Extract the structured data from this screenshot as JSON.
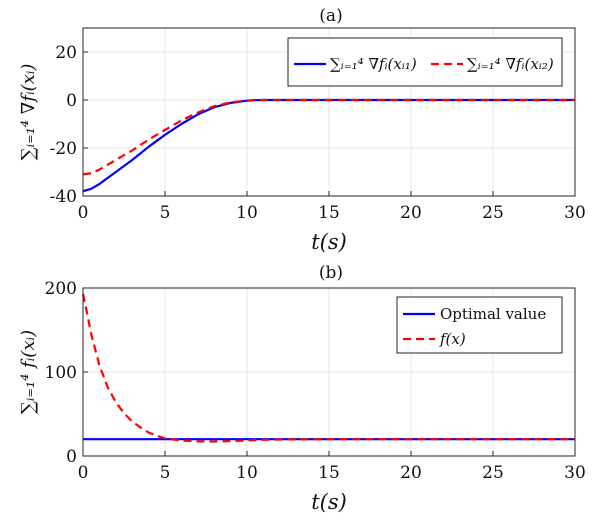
{
  "chart_data": [
    {
      "type": "line",
      "title": "(a)",
      "xlabel": "t(s)",
      "ylabel": "∑ᵢ₌₁⁴ ∇fᵢ(xᵢ)",
      "xlim": [
        0,
        30
      ],
      "ylim": [
        -40,
        30
      ],
      "xticks": [
        "0",
        "5",
        "10",
        "15",
        "20",
        "25",
        "30"
      ],
      "yticks": [
        "-40",
        "-20",
        "0",
        "20"
      ],
      "grid": true,
      "legend_position": "top-right",
      "x": [
        0,
        0.5,
        1,
        1.5,
        2,
        3,
        4,
        5,
        6,
        7,
        8,
        9,
        10,
        10.5,
        11,
        12,
        15,
        20,
        25,
        30
      ],
      "series": [
        {
          "name": "∑ᵢ₌₁⁴ ∇fᵢ(xᵢ₁)",
          "color": "#0000ff",
          "dash": "solid",
          "values": [
            -38,
            -37,
            -35,
            -32.5,
            -30,
            -25,
            -19.5,
            -14.5,
            -10,
            -6,
            -3,
            -1.2,
            -0.3,
            -0.1,
            0,
            0,
            0,
            0,
            0,
            0
          ]
        },
        {
          "name": "∑ᵢ₌₁⁴ ∇fᵢ(xᵢ₂)",
          "color": "#ff0000",
          "dash": "dashed",
          "values": [
            -31,
            -30.5,
            -29,
            -27,
            -25,
            -21,
            -16.5,
            -12.5,
            -8.5,
            -5.2,
            -2.6,
            -1,
            -0.2,
            -0.05,
            0,
            0,
            0,
            0,
            0,
            0
          ]
        }
      ]
    },
    {
      "type": "line",
      "title": "(b)",
      "xlabel": "t(s)",
      "ylabel": "∑ᵢ₌₁⁴ fᵢ(xᵢ)",
      "xlim": [
        0,
        30
      ],
      "ylim": [
        0,
        200
      ],
      "xticks": [
        "0",
        "5",
        "10",
        "15",
        "20",
        "25",
        "30"
      ],
      "yticks": [
        "0",
        "100",
        "200"
      ],
      "grid": true,
      "legend_position": "top-right",
      "x": [
        0,
        0.25,
        0.5,
        1,
        1.5,
        2,
        2.5,
        3,
        3.5,
        4,
        4.5,
        5,
        6,
        7,
        8,
        9,
        10,
        11,
        12,
        15,
        20,
        25,
        30
      ],
      "series": [
        {
          "name": "Optimal value",
          "color": "#0000ff",
          "dash": "solid",
          "values": [
            20,
            20,
            20,
            20,
            20,
            20,
            20,
            20,
            20,
            20,
            20,
            20,
            20,
            20,
            20,
            20,
            20,
            20,
            20,
            20,
            20,
            20,
            20
          ]
        },
        {
          "name": "f(x)",
          "color": "#ff0000",
          "dash": "dashed",
          "values": [
            193,
            170,
            145,
            108,
            82,
            64,
            51,
            41,
            34,
            28,
            24,
            21,
            18.5,
            17.5,
            17.3,
            17.8,
            18.5,
            19.3,
            19.7,
            20,
            20,
            20,
            20
          ]
        }
      ]
    }
  ]
}
